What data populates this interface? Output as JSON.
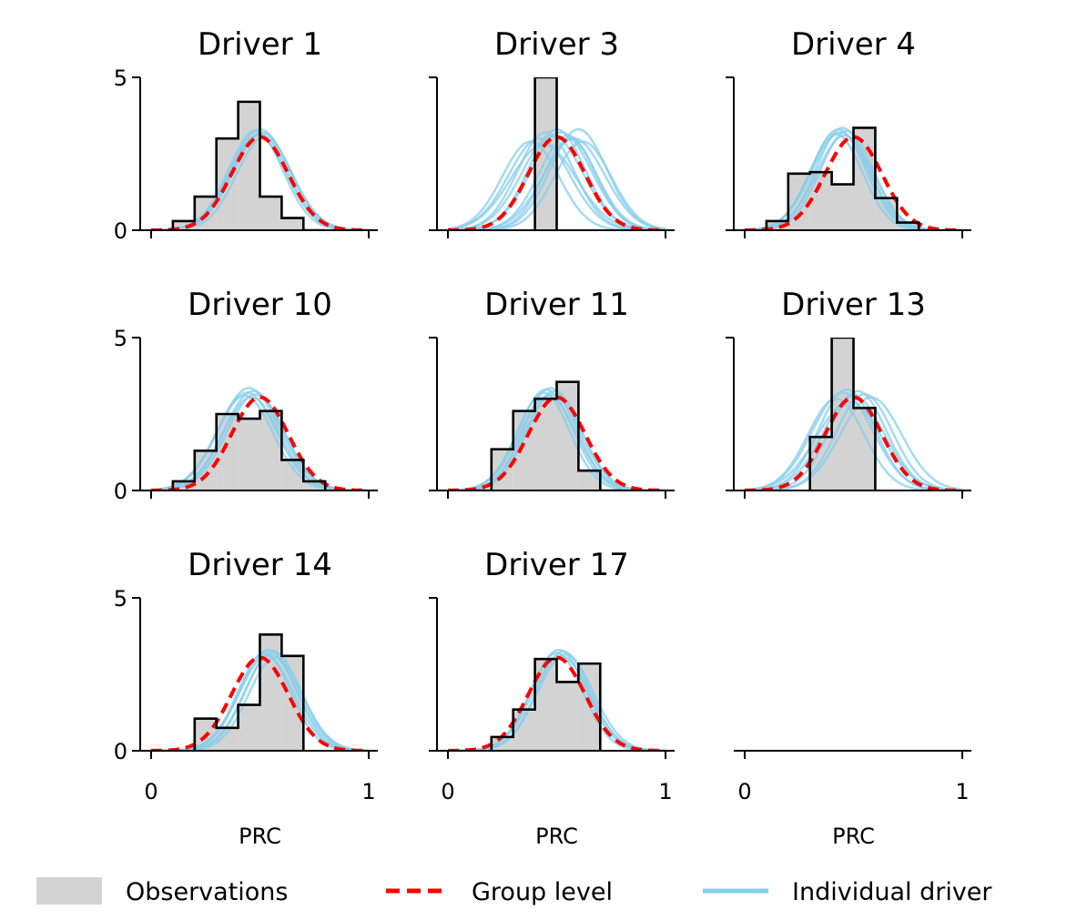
{
  "colors": {
    "observations": "#d3d3d3",
    "observations_edge": "#000000",
    "group_level": "#ff0000",
    "individual_driver": "#87ceeb"
  },
  "legend": {
    "observations": "Observations",
    "group_level": "Group level",
    "individual_driver": "Individual driver"
  },
  "chart_data": [
    {
      "type": "histogram+density",
      "title": "Driver 1",
      "xlabel": "",
      "xlim": [
        0,
        1
      ],
      "ylim": [
        0,
        5
      ],
      "xticks": [
        "0",
        "1"
      ],
      "yticks": [
        "0",
        "5"
      ],
      "show_xtick_labels": false,
      "hist": {
        "bin_edges": [
          0.1,
          0.2,
          0.3,
          0.4,
          0.5,
          0.6,
          0.7,
          0.8
        ],
        "counts": [
          0.3,
          1.1,
          3.0,
          4.2,
          1.1,
          0.4,
          0
        ]
      },
      "group_level": {
        "mean": 0.5,
        "sd": 0.13,
        "peak": 3.05
      },
      "individual_driver": {
        "means": [
          0.48,
          0.49,
          0.5,
          0.5,
          0.51,
          0.52
        ],
        "sds": [
          0.125,
          0.13,
          0.135,
          0.128,
          0.132,
          0.126
        ],
        "peaks": [
          3.25,
          3.1,
          3.3,
          3.15,
          3.2,
          3.05
        ]
      }
    },
    {
      "type": "histogram+density",
      "title": "Driver 3",
      "xlabel": "",
      "xlim": [
        0,
        1
      ],
      "ylim": [
        0,
        5
      ],
      "xticks": [
        "0",
        "1"
      ],
      "yticks": [
        "",
        ""
      ],
      "show_xtick_labels": false,
      "hist": {
        "bin_edges": [
          0.4,
          0.5
        ],
        "counts": [
          5.0
        ]
      },
      "group_level": {
        "mean": 0.5,
        "sd": 0.13,
        "peak": 3.05
      },
      "individual_driver": {
        "means": [
          0.38,
          0.42,
          0.45,
          0.48,
          0.5,
          0.52,
          0.55,
          0.58,
          0.6,
          0.62,
          0.44,
          0.56
        ],
        "sds": [
          0.13,
          0.14,
          0.13,
          0.14,
          0.13,
          0.14,
          0.13,
          0.14,
          0.13,
          0.13,
          0.15,
          0.12
        ],
        "peaks": [
          2.9,
          3.0,
          3.2,
          3.1,
          3.3,
          3.2,
          3.1,
          3.0,
          3.3,
          2.9,
          2.8,
          3.0
        ]
      }
    },
    {
      "type": "histogram+density",
      "title": "Driver 4",
      "xlabel": "",
      "xlim": [
        0,
        1
      ],
      "ylim": [
        0,
        5
      ],
      "xticks": [
        "0",
        "1"
      ],
      "yticks": [
        "",
        ""
      ],
      "show_xtick_labels": false,
      "hist": {
        "bin_edges": [
          0.1,
          0.2,
          0.3,
          0.4,
          0.5,
          0.6,
          0.7,
          0.8
        ],
        "counts": [
          0.3,
          1.85,
          1.9,
          1.5,
          3.35,
          1.05,
          0.25
        ]
      },
      "group_level": {
        "mean": 0.5,
        "sd": 0.13,
        "peak": 3.05
      },
      "individual_driver": {
        "means": [
          0.42,
          0.43,
          0.44,
          0.45,
          0.46,
          0.47
        ],
        "sds": [
          0.12,
          0.125,
          0.13,
          0.12,
          0.128,
          0.122
        ],
        "peaks": [
          3.15,
          3.3,
          3.2,
          3.35,
          3.1,
          3.25
        ]
      }
    },
    {
      "type": "histogram+density",
      "title": "Driver 10",
      "xlabel": "",
      "xlim": [
        0,
        1
      ],
      "ylim": [
        0,
        5
      ],
      "xticks": [
        "0",
        "1"
      ],
      "yticks": [
        "0",
        "5"
      ],
      "show_xtick_labels": false,
      "hist": {
        "bin_edges": [
          0.1,
          0.2,
          0.3,
          0.4,
          0.5,
          0.6,
          0.7,
          0.8
        ],
        "counts": [
          0.3,
          1.3,
          2.5,
          2.35,
          2.6,
          1.0,
          0.3
        ]
      },
      "group_level": {
        "mean": 0.5,
        "sd": 0.13,
        "peak": 3.05
      },
      "individual_driver": {
        "means": [
          0.43,
          0.44,
          0.45,
          0.46,
          0.47,
          0.48
        ],
        "sds": [
          0.13,
          0.135,
          0.14,
          0.13,
          0.136,
          0.132
        ],
        "peaks": [
          3.1,
          3.2,
          3.35,
          3.05,
          3.25,
          3.15
        ]
      }
    },
    {
      "type": "histogram+density",
      "title": "Driver 11",
      "xlabel": "",
      "xlim": [
        0,
        1
      ],
      "ylim": [
        0,
        5
      ],
      "xticks": [
        "0",
        "1"
      ],
      "yticks": [
        "",
        ""
      ],
      "show_xtick_labels": false,
      "hist": {
        "bin_edges": [
          0.1,
          0.2,
          0.3,
          0.4,
          0.5,
          0.6,
          0.7,
          0.8
        ],
        "counts": [
          0,
          1.35,
          2.6,
          3.0,
          3.55,
          0.65,
          0
        ]
      },
      "group_level": {
        "mean": 0.5,
        "sd": 0.13,
        "peak": 3.05
      },
      "individual_driver": {
        "means": [
          0.44,
          0.45,
          0.46,
          0.47,
          0.48,
          0.49
        ],
        "sds": [
          0.12,
          0.125,
          0.13,
          0.122,
          0.128,
          0.124
        ],
        "peaks": [
          3.2,
          3.3,
          3.1,
          3.35,
          3.15,
          3.25
        ]
      }
    },
    {
      "type": "histogram+density",
      "title": "Driver 13",
      "xlabel": "",
      "xlim": [
        0,
        1
      ],
      "ylim": [
        0,
        5
      ],
      "xticks": [
        "0",
        "1"
      ],
      "yticks": [
        "",
        ""
      ],
      "show_xtick_labels": false,
      "hist": {
        "bin_edges": [
          0.3,
          0.4,
          0.5,
          0.6
        ],
        "counts": [
          1.75,
          5.0,
          2.7
        ]
      },
      "group_level": {
        "mean": 0.5,
        "sd": 0.13,
        "peak": 3.05
      },
      "individual_driver": {
        "means": [
          0.42,
          0.45,
          0.47,
          0.5,
          0.52,
          0.55,
          0.58,
          0.48
        ],
        "sds": [
          0.13,
          0.14,
          0.13,
          0.14,
          0.13,
          0.13,
          0.14,
          0.15
        ],
        "peaks": [
          3.0,
          3.2,
          3.3,
          3.1,
          3.25,
          3.15,
          3.05,
          2.9
        ]
      }
    },
    {
      "type": "histogram+density",
      "title": "Driver 14",
      "xlabel": "PRC",
      "xlim": [
        0,
        1
      ],
      "ylim": [
        0,
        5
      ],
      "xticks": [
        "0",
        "1"
      ],
      "yticks": [
        "0",
        "5"
      ],
      "show_xtick_labels": true,
      "hist": {
        "bin_edges": [
          0.2,
          0.3,
          0.4,
          0.5,
          0.6,
          0.7
        ],
        "counts": [
          1.05,
          0.75,
          1.5,
          3.8,
          3.1
        ]
      },
      "group_level": {
        "mean": 0.5,
        "sd": 0.13,
        "peak": 3.05
      },
      "individual_driver": {
        "means": [
          0.52,
          0.53,
          0.54,
          0.55,
          0.56,
          0.57
        ],
        "sds": [
          0.12,
          0.125,
          0.13,
          0.12,
          0.128,
          0.122
        ],
        "peaks": [
          3.2,
          3.1,
          3.3,
          3.15,
          3.25,
          3.05
        ]
      }
    },
    {
      "type": "histogram+density",
      "title": "Driver 17",
      "xlabel": "PRC",
      "xlim": [
        0,
        1
      ],
      "ylim": [
        0,
        5
      ],
      "xticks": [
        "0",
        "1"
      ],
      "yticks": [
        "",
        ""
      ],
      "show_xtick_labels": true,
      "hist": {
        "bin_edges": [
          0.2,
          0.3,
          0.4,
          0.5,
          0.6,
          0.7
        ],
        "counts": [
          0.45,
          1.35,
          3.0,
          2.25,
          2.85
        ]
      },
      "group_level": {
        "mean": 0.5,
        "sd": 0.13,
        "peak": 3.05
      },
      "individual_driver": {
        "means": [
          0.5,
          0.51,
          0.52,
          0.53,
          0.54
        ],
        "sds": [
          0.12,
          0.125,
          0.13,
          0.122,
          0.128
        ],
        "peaks": [
          3.2,
          3.3,
          3.1,
          3.25,
          3.15
        ]
      }
    },
    {
      "type": "empty",
      "title": "",
      "xlabel": "PRC",
      "xlim": [
        0,
        1
      ],
      "xticks": [
        "0",
        "1"
      ],
      "show_xtick_labels": true
    }
  ]
}
